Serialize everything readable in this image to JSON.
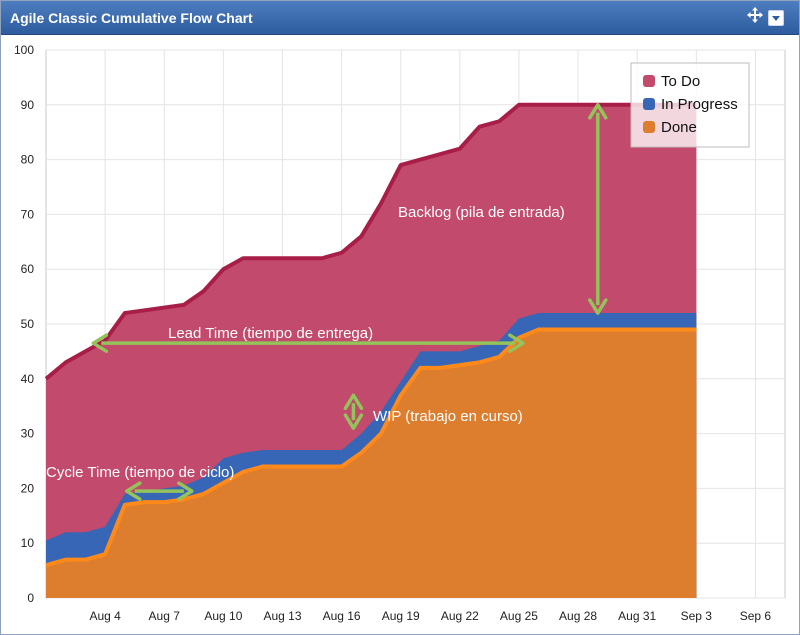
{
  "window": {
    "title": "Agile Classic Cumulative Flow Chart"
  },
  "icons": {
    "move": "move-arrows-icon",
    "menu": "dropdown-menu-icon"
  },
  "colors": {
    "todo": "#c24a6c",
    "todo_line": "#a81e48",
    "inprogress": "#3866b6",
    "done": "#dd7d2e",
    "done_line": "#ff8a1a",
    "arrow": "#93c35a"
  },
  "chart_data": {
    "type": "area",
    "title": "Agile Classic Cumulative Flow Chart",
    "x": [
      0,
      1,
      2,
      3,
      4,
      5,
      6,
      7,
      8,
      9,
      10,
      11,
      12,
      13,
      14,
      15,
      16,
      17,
      18,
      19,
      20,
      21,
      22,
      23,
      24,
      25,
      26,
      27,
      28,
      29,
      30,
      31,
      32,
      33
    ],
    "xticks": [
      {
        "x": 3,
        "label": "Aug 4"
      },
      {
        "x": 6,
        "label": "Aug 7"
      },
      {
        "x": 9,
        "label": "Aug 10"
      },
      {
        "x": 12,
        "label": "Aug 13"
      },
      {
        "x": 15,
        "label": "Aug 16"
      },
      {
        "x": 18,
        "label": "Aug 19"
      },
      {
        "x": 21,
        "label": "Aug 22"
      },
      {
        "x": 24,
        "label": "Aug 25"
      },
      {
        "x": 27,
        "label": "Aug 28"
      },
      {
        "x": 30,
        "label": "Aug 31"
      },
      {
        "x": 33,
        "label": "Sep 3"
      },
      {
        "x": 36,
        "label": "Sep 6"
      }
    ],
    "xlim": [
      0,
      37.5
    ],
    "ylim": [
      0,
      100
    ],
    "yticks": [
      0,
      10,
      20,
      30,
      40,
      50,
      60,
      70,
      80,
      90,
      100
    ],
    "grid": true,
    "legend": {
      "position": "top-right"
    },
    "series": [
      {
        "name": "To Do",
        "color": "#c24a6c",
        "values": [
          40,
          43,
          45,
          47,
          52,
          52.5,
          53,
          53.5,
          56,
          60,
          62,
          62,
          62,
          62,
          62,
          63,
          66,
          72,
          79,
          80,
          81,
          82,
          86,
          87,
          90,
          90,
          90,
          90,
          90,
          90,
          90,
          90,
          90,
          90
        ]
      },
      {
        "name": "In Progress",
        "color": "#3866b6",
        "values": [
          10.5,
          12,
          12,
          13,
          19,
          19.5,
          20,
          20.5,
          22,
          25.5,
          26.5,
          27,
          27,
          27,
          27,
          27,
          30,
          34,
          39.5,
          45,
          45,
          45,
          46,
          47,
          51,
          52,
          52,
          52,
          52,
          52,
          52,
          52,
          52,
          52
        ]
      },
      {
        "name": "Done",
        "color": "#dd7d2e",
        "values": [
          6,
          7,
          7,
          8,
          17,
          17.5,
          17.5,
          18,
          19,
          21,
          23,
          24,
          24,
          24,
          24,
          24,
          26.5,
          30,
          37,
          42,
          42,
          42.5,
          43,
          44,
          47.5,
          49,
          49,
          49,
          49,
          49,
          49,
          49,
          49,
          49
        ]
      }
    ],
    "annotations": [
      {
        "label": "Backlog (pila de entrada)",
        "arrow": "vertical",
        "x": 28,
        "from": 52,
        "to": 90
      },
      {
        "label": "Lead Time (tiempo de entrega)",
        "arrow": "horizontal",
        "y": 46.5,
        "from": 2.4,
        "to": 24.2
      },
      {
        "label": "WIP (trabajo en curso)",
        "arrow": "vertical",
        "x": 15.6,
        "from": 31,
        "to": 37
      },
      {
        "label": "Cycle Time (tiempo de ciclo)",
        "arrow": "horizontal",
        "y": 19.5,
        "from": 4.1,
        "to": 7.4
      }
    ]
  }
}
